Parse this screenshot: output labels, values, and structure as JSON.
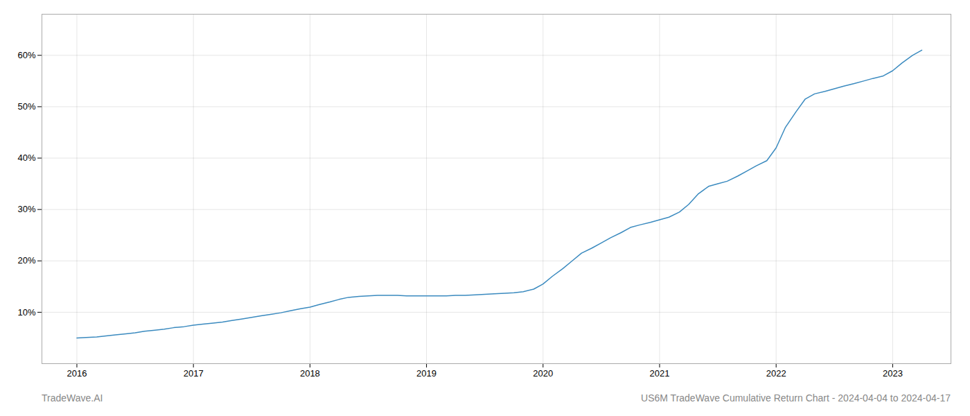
{
  "chart_data": {
    "type": "line",
    "title": "US6M TradeWave Cumulative Return Chart - 2024-04-04 to 2024-04-17",
    "annotations": [
      "TradeWave.AI"
    ],
    "color": "#3a8abf",
    "x": [
      2016.0,
      2016.08,
      2016.17,
      2016.25,
      2016.33,
      2016.42,
      2016.5,
      2016.58,
      2016.67,
      2016.75,
      2016.83,
      2016.92,
      2017.0,
      2017.08,
      2017.17,
      2017.25,
      2017.33,
      2017.42,
      2017.5,
      2017.58,
      2017.67,
      2017.75,
      2017.83,
      2017.92,
      2018.0,
      2018.08,
      2018.17,
      2018.25,
      2018.33,
      2018.42,
      2018.5,
      2018.58,
      2018.67,
      2018.75,
      2018.83,
      2018.92,
      2019.0,
      2019.08,
      2019.17,
      2019.25,
      2019.33,
      2019.42,
      2019.5,
      2019.58,
      2019.67,
      2019.75,
      2019.83,
      2019.92,
      2020.0,
      2020.08,
      2020.17,
      2020.25,
      2020.33,
      2020.42,
      2020.5,
      2020.58,
      2020.67,
      2020.75,
      2020.83,
      2020.92,
      2021.0,
      2021.08,
      2021.17,
      2021.25,
      2021.33,
      2021.42,
      2021.5,
      2021.58,
      2021.67,
      2021.75,
      2021.83,
      2021.92,
      2022.0,
      2022.08,
      2022.17,
      2022.25,
      2022.33,
      2022.42,
      2022.5,
      2022.58,
      2022.67,
      2022.75,
      2022.83,
      2022.92,
      2023.0,
      2023.08,
      2023.17,
      2023.25
    ],
    "values": [
      5.0,
      5.1,
      5.2,
      5.4,
      5.6,
      5.8,
      6.0,
      6.3,
      6.5,
      6.7,
      7.0,
      7.2,
      7.5,
      7.7,
      7.9,
      8.1,
      8.4,
      8.7,
      9.0,
      9.3,
      9.6,
      9.9,
      10.3,
      10.7,
      11.0,
      11.5,
      12.0,
      12.5,
      12.9,
      13.1,
      13.2,
      13.3,
      13.3,
      13.3,
      13.2,
      13.2,
      13.2,
      13.2,
      13.2,
      13.3,
      13.3,
      13.4,
      13.5,
      13.6,
      13.7,
      13.8,
      14.0,
      14.5,
      15.5,
      17.0,
      18.5,
      20.0,
      21.5,
      22.5,
      23.5,
      24.5,
      25.5,
      26.5,
      27.0,
      27.5,
      28.0,
      28.5,
      29.5,
      31.0,
      33.0,
      34.5,
      35.0,
      35.5,
      36.5,
      37.5,
      38.5,
      39.5,
      42.0,
      46.0,
      49.0,
      51.5,
      52.5,
      53.0,
      53.5,
      54.0,
      54.5,
      55.0,
      55.5,
      56.0,
      57.0,
      58.5,
      60.0,
      61.0
    ],
    "xlim": [
      2015.7,
      2023.5
    ],
    "ylim": [
      0,
      68
    ],
    "xticks": [
      2016,
      2017,
      2018,
      2019,
      2020,
      2021,
      2022,
      2023
    ],
    "yticks": [
      {
        "value": 10,
        "label": "10%"
      },
      {
        "value": 20,
        "label": "20%"
      },
      {
        "value": 30,
        "label": "30%"
      },
      {
        "value": 40,
        "label": "40%"
      },
      {
        "value": 50,
        "label": "50%"
      },
      {
        "value": 60,
        "label": "60%"
      }
    ],
    "grid": true
  }
}
